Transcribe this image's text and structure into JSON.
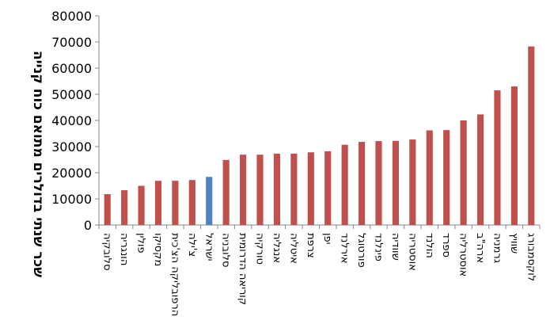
{
  "chart_data": {
    "type": "bar",
    "title": "",
    "xlabel": "",
    "ylabel": "שכר שנתי בדולרים מתואם כוח קנייה",
    "ylim": [
      0,
      80000
    ],
    "yticks": [
      "0",
      "10000",
      "20000",
      "30000",
      "40000",
      "50000",
      "60000",
      "70000",
      "80000"
    ],
    "grid": false,
    "legend": "none",
    "bar_color": "#c0504d",
    "highlight_color": "#4f81bd",
    "highlight_index": 6,
    "categories": [
      "סלובקיה",
      "הונגריה",
      "פולין",
      "מקסיקו",
      "הרפובליקה הצ'כית",
      "צ'ילה",
      "ישראל",
      "סלובניה",
      "קוריאה הדרומית",
      "טורקיה",
      "אנגליה",
      "איטליה",
      "צרפת",
      "יפן",
      "אירלנד",
      "פורטוגל",
      "פינלנד",
      "שוודיה",
      "אוסטריה",
      "הולנד",
      "ספרד",
      "אוסטרליה",
      "ארה\"ב",
      "גרמניה",
      "שוויץ",
      "לוקסמבורג"
    ],
    "values": [
      11800,
      13300,
      15000,
      16900,
      16900,
      17200,
      18400,
      24900,
      26900,
      26900,
      27300,
      27300,
      27800,
      28200,
      30700,
      31800,
      32100,
      32200,
      32700,
      36200,
      36300,
      40000,
      42300,
      51500,
      53000,
      68300
    ]
  }
}
